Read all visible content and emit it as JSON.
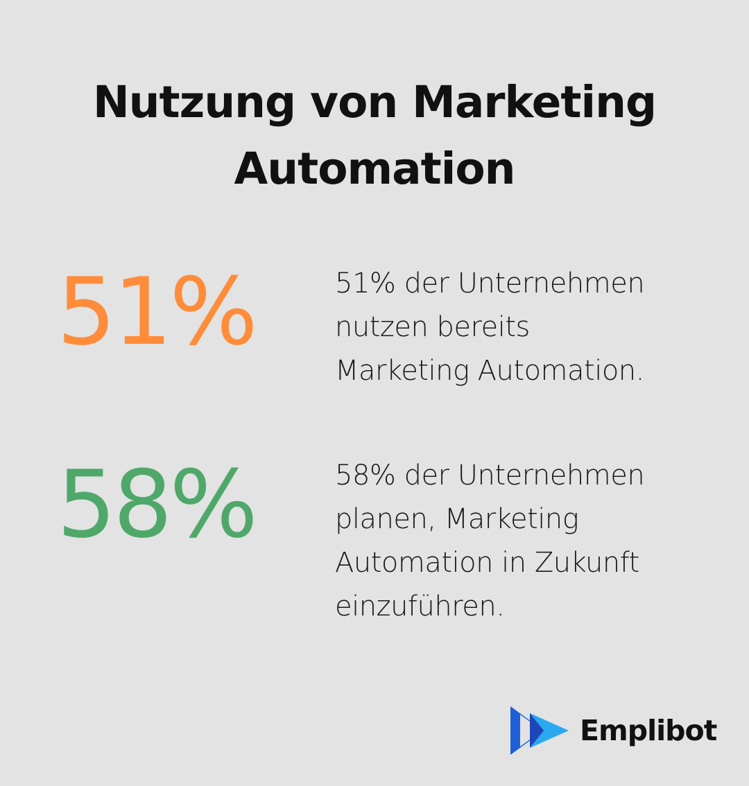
{
  "title": {
    "line1": "Nutzung von Marketing",
    "line2": "Automation"
  },
  "stats": [
    {
      "value": "51%",
      "color": "#ff8c3a",
      "description_lines": [
        "51% der Unternehmen",
        "nutzen bereits",
        "Marketing Automation."
      ]
    },
    {
      "value": "58%",
      "color": "#4fa86a",
      "description_lines": [
        "58% der Unternehmen",
        "planen, Marketing",
        "Automation in Zukunft",
        "einzuführen."
      ]
    }
  ],
  "brand": {
    "name": "Emplibot",
    "icon": "play-arrows-logo-icon",
    "colors": [
      "#1f5fd8",
      "#2aa8f0"
    ]
  },
  "background": "#e2e3e2"
}
